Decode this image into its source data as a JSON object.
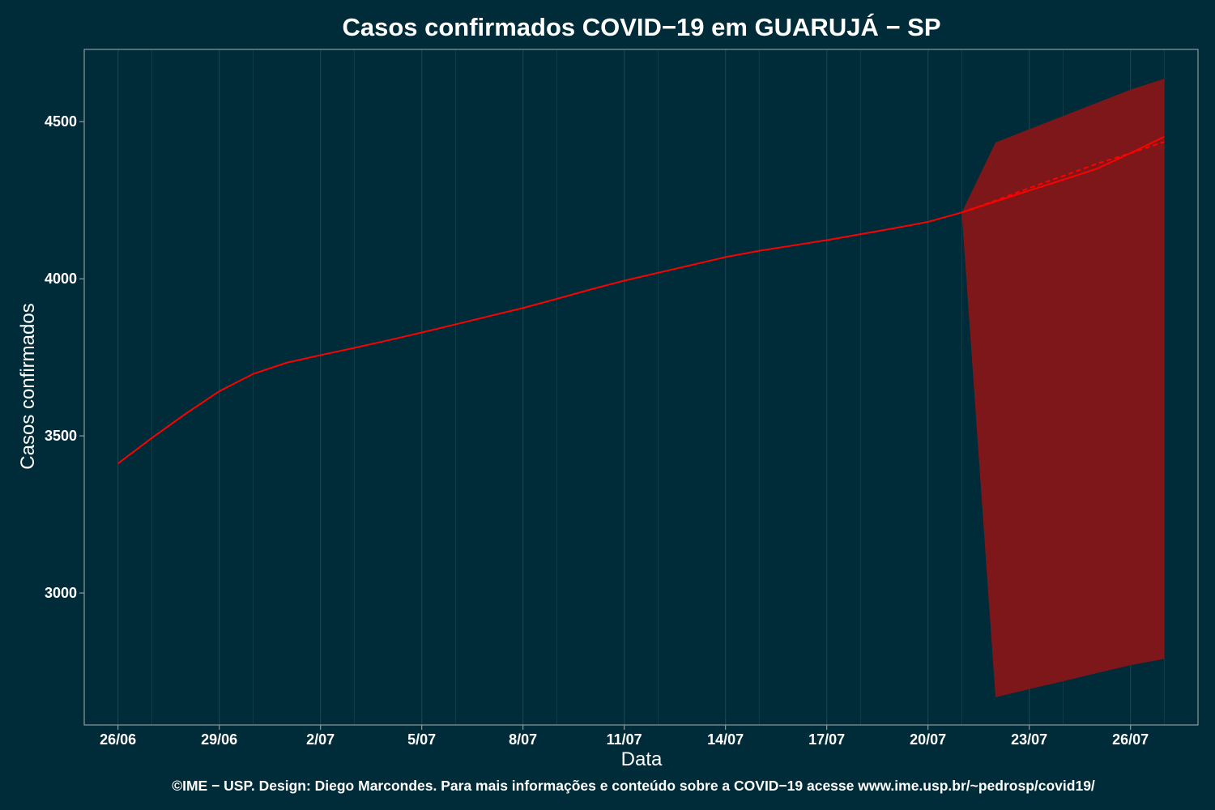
{
  "colors": {
    "background": "#002b38",
    "panel_border": "#8a9aa0",
    "grid": "#16404c",
    "text": "#ffffff",
    "line": "#ff0000",
    "band": "#7e1719"
  },
  "chart_data": {
    "type": "line",
    "title": "Casos confirmados COVID−19 em GUARUJÁ − SP",
    "xlabel": "Data",
    "ylabel": "Casos confirmados",
    "footer": "©IME − USP. Design: Diego Marcondes. Para mais informações e conteúdo sobre a COVID−19 acesse www.ime.usp.br/~pedrosp/covid19/",
    "x_range": [
      "2020-06-25",
      "2020-07-28"
    ],
    "ylim": [
      2580,
      4730
    ],
    "x_ticks": [
      {
        "date": "2020-06-26",
        "label": "26/06"
      },
      {
        "date": "2020-06-29",
        "label": "29/06"
      },
      {
        "date": "2020-07-02",
        "label": "2/07"
      },
      {
        "date": "2020-07-05",
        "label": "5/07"
      },
      {
        "date": "2020-07-08",
        "label": "8/07"
      },
      {
        "date": "2020-07-11",
        "label": "11/07"
      },
      {
        "date": "2020-07-14",
        "label": "14/07"
      },
      {
        "date": "2020-07-17",
        "label": "17/07"
      },
      {
        "date": "2020-07-20",
        "label": "20/07"
      },
      {
        "date": "2020-07-23",
        "label": "23/07"
      },
      {
        "date": "2020-07-26",
        "label": "26/07"
      }
    ],
    "y_ticks": [
      3000,
      3500,
      4000,
      4500
    ],
    "grid": true,
    "series": [
      {
        "style": "solid",
        "x": [
          "2020-06-26",
          "2020-06-27",
          "2020-06-28",
          "2020-06-29",
          "2020-06-30",
          "2020-07-01",
          "2020-07-02",
          "2020-07-03",
          "2020-07-04",
          "2020-07-05",
          "2020-07-06",
          "2020-07-07",
          "2020-07-08",
          "2020-07-09",
          "2020-07-10",
          "2020-07-11",
          "2020-07-12",
          "2020-07-13",
          "2020-07-14",
          "2020-07-15",
          "2020-07-16",
          "2020-07-17",
          "2020-07-18",
          "2020-07-19",
          "2020-07-20",
          "2020-07-21",
          "2020-07-22",
          "2020-07-23",
          "2020-07-24",
          "2020-07-25",
          "2020-07-26",
          "2020-07-27"
        ],
        "y": [
          3412,
          3493,
          3570,
          3642,
          3697,
          3733,
          3757,
          3780,
          3804,
          3829,
          3855,
          3881,
          3907,
          3936,
          3966,
          3994,
          4019,
          4044,
          4069,
          4089,
          4106,
          4123,
          4142,
          4161,
          4181,
          4211,
          4246,
          4281,
          4315,
          4350,
          4400,
          4452
        ]
      },
      {
        "style": "dashed",
        "x": [
          "2020-07-21",
          "2020-07-22",
          "2020-07-23",
          "2020-07-24",
          "2020-07-25",
          "2020-07-26",
          "2020-07-27"
        ],
        "y": [
          4211,
          4249,
          4289,
          4327,
          4366,
          4400,
          4436
        ]
      }
    ],
    "band": {
      "x": [
        "2020-07-21",
        "2020-07-22",
        "2020-07-23",
        "2020-07-24",
        "2020-07-25",
        "2020-07-26",
        "2020-07-27"
      ],
      "upper": [
        4211,
        4434,
        4476,
        4518,
        4560,
        4602,
        4637
      ],
      "lower": [
        4211,
        2668,
        2694,
        2719,
        2745,
        2770,
        2790
      ]
    }
  }
}
